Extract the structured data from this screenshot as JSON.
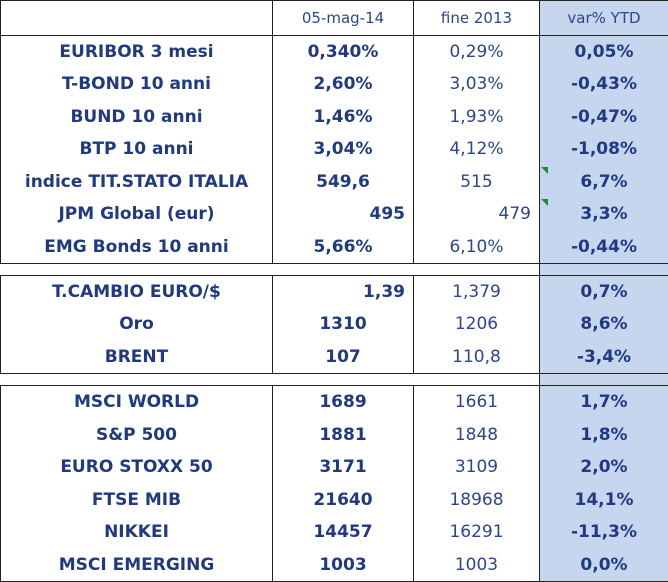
{
  "header": {
    "col0": "",
    "col1": "05-mag-14",
    "col2": "fine 2013",
    "col3": "var% YTD"
  },
  "section_rates": [
    {
      "name": "EURIBOR 3 mesi",
      "current": "0,340%",
      "end2013": "0,29%",
      "ytd": "0,05%"
    },
    {
      "name": "T-BOND 10 anni",
      "current": "2,60%",
      "end2013": "3,03%",
      "ytd": "-0,43%"
    },
    {
      "name": "BUND 10 anni",
      "current": "1,46%",
      "end2013": "1,93%",
      "ytd": "-0,47%"
    },
    {
      "name": "BTP 10 anni",
      "current": "3,04%",
      "end2013": "4,12%",
      "ytd": "-1,08%"
    },
    {
      "name": "indice TIT.STATO ITALIA",
      "current": "549,6",
      "end2013": "515",
      "ytd": "6,7%"
    },
    {
      "name": "JPM Global (eur)",
      "current": "495",
      "end2013": "479",
      "ytd": "3,3%"
    },
    {
      "name": "EMG Bonds 10 anni",
      "current": "5,66%",
      "end2013": "6,10%",
      "ytd": "-0,44%"
    }
  ],
  "section_fx_commodities": [
    {
      "name": "T.CAMBIO EURO/$",
      "current": "1,39",
      "end2013": "1,379",
      "ytd": "0,7%"
    },
    {
      "name": "Oro",
      "current": "1310",
      "end2013": "1206",
      "ytd": "8,6%"
    },
    {
      "name": "BRENT",
      "current": "107",
      "end2013": "110,8",
      "ytd": "-3,4%"
    }
  ],
  "section_equities": [
    {
      "name": "MSCI WORLD",
      "current": "1689",
      "end2013": "1661",
      "ytd": "1,7%"
    },
    {
      "name": "S&P 500",
      "current": "1881",
      "end2013": "1848",
      "ytd": "1,8%"
    },
    {
      "name": "EURO STOXX 50",
      "current": "3171",
      "end2013": "3109",
      "ytd": "2,0%"
    },
    {
      "name": "FTSE MIB",
      "current": "21640",
      "end2013": "18968",
      "ytd": "14,1%"
    },
    {
      "name": "NIKKEI",
      "current": "14457",
      "end2013": "16291",
      "ytd": "-11,3%"
    },
    {
      "name": "MSCI EMERGING",
      "current": "1003",
      "end2013": "1003",
      "ytd": "0,0%"
    }
  ],
  "colors": {
    "text": "#1f3a82",
    "ytd_highlight": "#c6d6ee",
    "note_flag": "#1e8c2e"
  }
}
